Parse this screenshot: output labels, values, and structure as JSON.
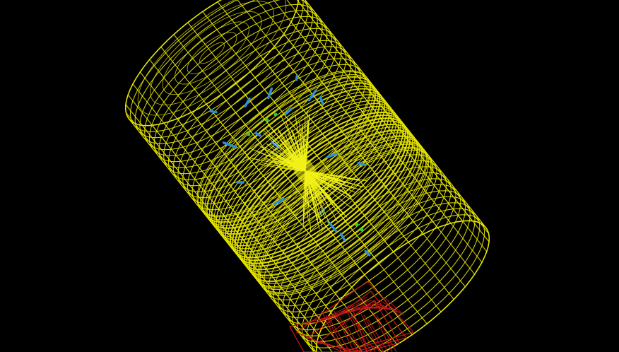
{
  "scene": {
    "background": "#000000",
    "colors": {
      "detector_mesh": "#e6e600",
      "tracks": "#f2f21a",
      "hits_blue": "#2a8fd6",
      "hits_green": "#22cc44",
      "calorimeter_box": "#c81818"
    },
    "elements": [
      "detector-cylinder-wireframe",
      "particle-track-bundle",
      "detector-hit-markers",
      "calorimeter-box-wireframe"
    ]
  }
}
